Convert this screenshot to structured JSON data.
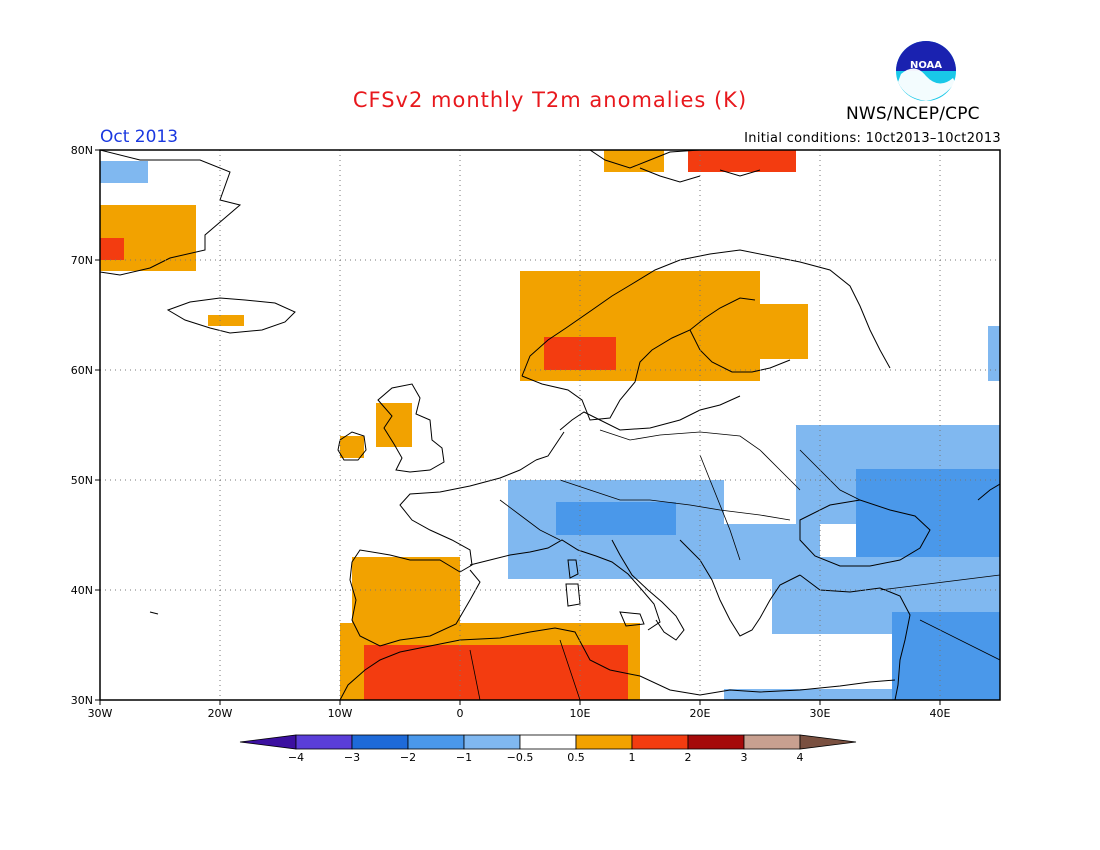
{
  "title": "CFSv2 monthly T2m anomalies (K)",
  "month_label": "Oct 2013",
  "initial_conditions": "Initial conditions: 10ct2013–10ct2013",
  "agency": "NWS/NCEP/CPC",
  "logo_text": "NOAA",
  "map": {
    "lon_range": [
      -30,
      45
    ],
    "lat_range": [
      30,
      80
    ],
    "lon_ticks": [
      "30W",
      "20W",
      "10W",
      "0",
      "10E",
      "20E",
      "30E",
      "40E"
    ],
    "lat_ticks": [
      "80N",
      "70N",
      "60N",
      "50N",
      "40N",
      "30N"
    ],
    "grid": "dotted every 10°",
    "anomaly_regions": [
      {
        "category": "-1..-0.5",
        "color": "#80b8f0",
        "lon": [
          -30,
          -26
        ],
        "lat": [
          77,
          79
        ]
      },
      {
        "category": "0.5..1",
        "color": "#f2a200",
        "lon": [
          -30,
          -22
        ],
        "lat": [
          69,
          75
        ]
      },
      {
        "category": "1..2",
        "color": "#f33c10",
        "lon": [
          -30,
          -28
        ],
        "lat": [
          70,
          72
        ]
      },
      {
        "category": "0.5..1",
        "color": "#f2a200",
        "lon": [
          -21,
          -18
        ],
        "lat": [
          64,
          65
        ]
      },
      {
        "category": "0.5..1",
        "color": "#f2a200",
        "lon": [
          5,
          25
        ],
        "lat": [
          59,
          69
        ]
      },
      {
        "category": "1..2",
        "color": "#f33c10",
        "lon": [
          7,
          13
        ],
        "lat": [
          60,
          63
        ]
      },
      {
        "category": "0.5..1",
        "color": "#f2a200",
        "lon": [
          22,
          29
        ],
        "lat": [
          61,
          66
        ]
      },
      {
        "category": "0.5..1",
        "color": "#f2a200",
        "lon": [
          -7,
          -4
        ],
        "lat": [
          53,
          57
        ]
      },
      {
        "category": "0.5..1",
        "color": "#f2a200",
        "lon": [
          -10,
          -8
        ],
        "lat": [
          52,
          54
        ]
      },
      {
        "category": "0.5..1",
        "color": "#f2a200",
        "lon": [
          -9,
          0
        ],
        "lat": [
          36,
          43
        ]
      },
      {
        "category": "0.5..1",
        "color": "#f2a200",
        "lon": [
          -10,
          15
        ],
        "lat": [
          30,
          37
        ]
      },
      {
        "category": "1..2",
        "color": "#f33c10",
        "lon": [
          -8,
          14
        ],
        "lat": [
          30,
          35
        ]
      },
      {
        "category": "-1..-0.5",
        "color": "#80b8f0",
        "lon": [
          4,
          22
        ],
        "lat": [
          41,
          50
        ]
      },
      {
        "category": "-2..-1",
        "color": "#4a98ea",
        "lon": [
          8,
          18
        ],
        "lat": [
          45,
          48
        ]
      },
      {
        "category": "-1..-0.5",
        "color": "#80b8f0",
        "lon": [
          18,
          30
        ],
        "lat": [
          41,
          46
        ]
      },
      {
        "category": "-1..-0.5",
        "color": "#80b8f0",
        "lon": [
          28,
          45
        ],
        "lat": [
          46,
          55
        ]
      },
      {
        "category": "-2..-1",
        "color": "#4a98ea",
        "lon": [
          33,
          45
        ],
        "lat": [
          40,
          51
        ]
      },
      {
        "category": "-1..-0.5",
        "color": "#80b8f0",
        "lon": [
          26,
          45
        ],
        "lat": [
          36,
          43
        ]
      },
      {
        "category": "-2..-1",
        "color": "#4a98ea",
        "lon": [
          36,
          45
        ],
        "lat": [
          30,
          38
        ]
      },
      {
        "category": "-1..-0.5",
        "color": "#80b8f0",
        "lon": [
          22,
          36
        ],
        "lat": [
          30,
          31
        ]
      },
      {
        "category": "0.5..1",
        "color": "#f2a200",
        "lon": [
          12,
          17
        ],
        "lat": [
          78,
          80
        ]
      },
      {
        "category": "1..2",
        "color": "#f33c10",
        "lon": [
          19,
          28
        ],
        "lat": [
          78,
          80
        ]
      },
      {
        "category": "-1..-0.5",
        "color": "#80b8f0",
        "lon": [
          44,
          45
        ],
        "lat": [
          59,
          64
        ]
      }
    ]
  },
  "colorbar": {
    "labels": [
      "−4",
      "−3",
      "−2",
      "−1",
      "−0.5",
      "0.5",
      "1",
      "2",
      "3",
      "4"
    ],
    "colors": [
      "#3c10a0",
      "#5a3ed8",
      "#1e6ad8",
      "#4a98ea",
      "#80b8f0",
      "#ffffff",
      "#f2a200",
      "#f33c10",
      "#a50a0a",
      "#c8a090",
      "#7a5040"
    ]
  }
}
